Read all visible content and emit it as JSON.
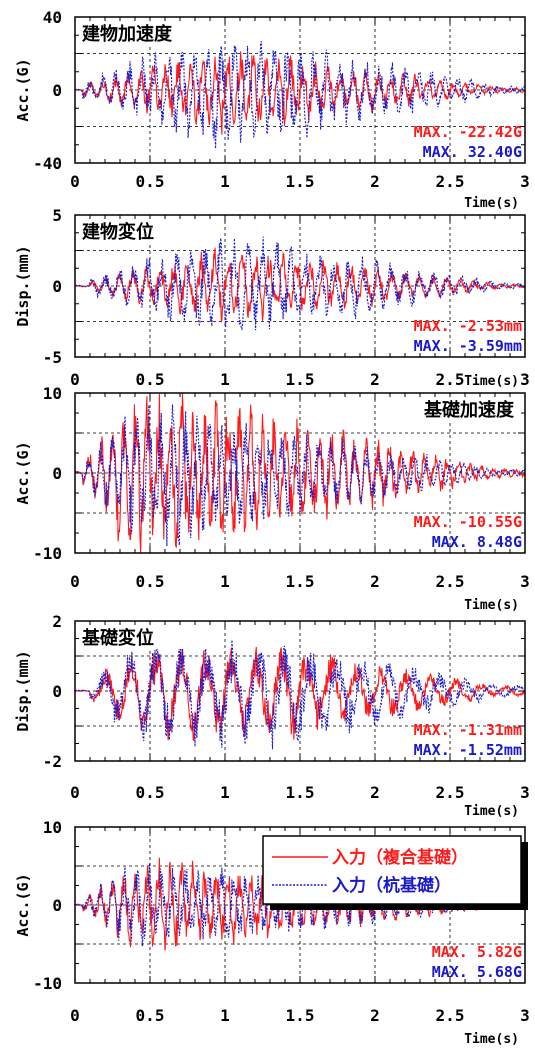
{
  "colors": {
    "red": "#ff1a1a",
    "blue": "#1a1acc",
    "axis": "#000000",
    "grid": "#000000"
  },
  "legend": {
    "position": "top-right of bottom panel",
    "items": [
      {
        "label": "入力（複合基礎）",
        "color": "#ff1a1a",
        "style": "solid"
      },
      {
        "label": "入力（杭基礎）",
        "color": "#1a1acc",
        "style": "dashed"
      }
    ]
  },
  "chart_data": [
    {
      "type": "line",
      "title": "建物加速度",
      "title_position": "top-left",
      "xlabel": "Time(s)",
      "ylabel": "Acc.(G)",
      "xlim": [
        0,
        3
      ],
      "ylim": [
        -40,
        40
      ],
      "xticks": [
        "0",
        "0.5",
        "1",
        "1.5",
        "2",
        "2.5",
        "3"
      ],
      "yticks": [
        "40",
        "0",
        "-40"
      ],
      "grid": "dashed",
      "envelope": {
        "start": 0.05,
        "rise_end": 0.9,
        "peak_time": 0.95,
        "decay_end": 3.0,
        "base_amp": 0.06
      },
      "series": [
        {
          "color": "#ff1a1a",
          "style": "solid",
          "peak_abs": 22.42,
          "freq_hz": 12.0
        },
        {
          "color": "#1a1acc",
          "style": "dashed",
          "peak_abs": 32.4,
          "freq_hz": 11.4
        }
      ],
      "annotations": [
        "MAX. -22.42G",
        "MAX. 32.40G"
      ]
    },
    {
      "type": "line",
      "title": "建物変位",
      "title_position": "top-left",
      "xlabel": "Time(s)",
      "ylabel": "Disp.(mm)",
      "xlim": [
        0,
        3
      ],
      "ylim": [
        -5,
        5
      ],
      "xticks": [
        "0",
        "0.5",
        "1",
        "1.5",
        "2",
        "2.5",
        "3"
      ],
      "yticks": [
        "5",
        "0",
        "-5"
      ],
      "grid": "dashed",
      "envelope": {
        "start": 0.1,
        "rise_end": 0.9,
        "peak_time": 0.95,
        "decay_end": 3.0,
        "base_amp": 0.06
      },
      "series": [
        {
          "color": "#ff1a1a",
          "style": "solid",
          "peak_abs": 2.53,
          "freq_hz": 11.0
        },
        {
          "color": "#1a1acc",
          "style": "dashed",
          "peak_abs": 3.59,
          "freq_hz": 10.5
        }
      ],
      "annotations": [
        "MAX. -2.53mm",
        "MAX. -3.59mm"
      ]
    },
    {
      "type": "line",
      "title": "基礎加速度",
      "title_position": "top-right",
      "xlabel": "Time(s)",
      "ylabel": "Acc.(G)",
      "xlim": [
        0,
        3
      ],
      "ylim": [
        -10,
        10
      ],
      "xticks": [
        "0",
        "0.5",
        "1",
        "1.5",
        "2",
        "2.5",
        "3"
      ],
      "yticks": [
        "10",
        "0",
        "-10"
      ],
      "grid": "dashed",
      "envelope": {
        "start": 0.05,
        "rise_end": 0.4,
        "peak_time": 0.5,
        "decay_end": 3.0,
        "base_amp": 0.06
      },
      "series": [
        {
          "color": "#ff1a1a",
          "style": "solid",
          "peak_abs": 10.55,
          "freq_hz": 13.0
        },
        {
          "color": "#1a1acc",
          "style": "dashed",
          "peak_abs": 8.48,
          "freq_hz": 12.4
        }
      ],
      "annotations": [
        "MAX. -10.55G",
        "MAX. 8.48G"
      ]
    },
    {
      "type": "line",
      "title": "基礎変位",
      "title_position": "top-left",
      "xlabel": "Time(s)",
      "ylabel": "Disp.(mm)",
      "xlim": [
        0,
        3
      ],
      "ylim": [
        -2,
        2
      ],
      "xticks": [
        "0",
        "0.5",
        "1",
        "1.5",
        "2",
        "2.5",
        "3"
      ],
      "yticks": [
        "2",
        "0",
        "-2"
      ],
      "grid": "dashed",
      "envelope": {
        "start": 0.1,
        "rise_end": 0.4,
        "peak_time": 1.3,
        "decay_end": 3.0,
        "base_amp": 0.12
      },
      "series": [
        {
          "color": "#ff1a1a",
          "style": "solid",
          "peak_abs": 1.31,
          "freq_hz": 6.0
        },
        {
          "color": "#1a1acc",
          "style": "dashed",
          "peak_abs": 1.52,
          "freq_hz": 5.8
        }
      ],
      "annotations": [
        "MAX. -1.31mm",
        "MAX. -1.52mm"
      ]
    },
    {
      "type": "line",
      "title": "",
      "title_position": "none",
      "xlabel": "Time(s)",
      "ylabel": "Acc.(G)",
      "xlim": [
        0,
        3
      ],
      "ylim": [
        -10,
        10
      ],
      "xticks": [
        "0",
        "0.5",
        "1",
        "1.5",
        "2",
        "2.5",
        "3"
      ],
      "yticks": [
        "10",
        "0",
        "-10"
      ],
      "grid": "dashed",
      "envelope": {
        "start": 0.05,
        "rise_end": 0.4,
        "peak_time": 0.5,
        "decay_end": 3.0,
        "base_amp": 0.04
      },
      "series": [
        {
          "color": "#ff1a1a",
          "style": "solid",
          "peak_abs": 5.82,
          "freq_hz": 13.0
        },
        {
          "color": "#1a1acc",
          "style": "dashed",
          "peak_abs": 5.68,
          "freq_hz": 12.4
        }
      ],
      "annotations": [
        "MAX. 5.82G",
        "MAX. 5.68G"
      ]
    }
  ]
}
